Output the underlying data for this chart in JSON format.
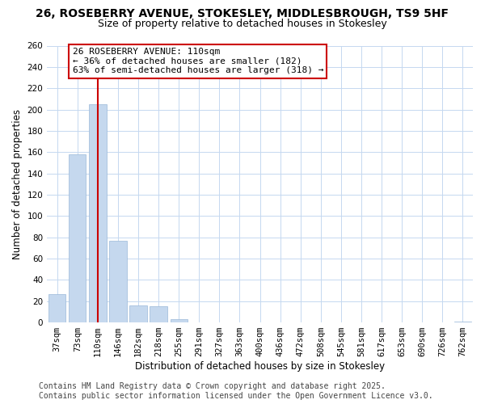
{
  "title": "26, ROSEBERRY AVENUE, STOKESLEY, MIDDLESBROUGH, TS9 5HF",
  "subtitle": "Size of property relative to detached houses in Stokesley",
  "xlabel": "Distribution of detached houses by size in Stokesley",
  "ylabel": "Number of detached properties",
  "bar_color": "#c5d8ee",
  "bar_edge_color": "#9ab8d8",
  "categories": [
    "37sqm",
    "73sqm",
    "110sqm",
    "146sqm",
    "182sqm",
    "218sqm",
    "255sqm",
    "291sqm",
    "327sqm",
    "363sqm",
    "400sqm",
    "436sqm",
    "472sqm",
    "508sqm",
    "545sqm",
    "581sqm",
    "617sqm",
    "653sqm",
    "690sqm",
    "726sqm",
    "762sqm"
  ],
  "values": [
    27,
    158,
    205,
    77,
    16,
    15,
    3,
    0,
    0,
    0,
    0,
    0,
    0,
    0,
    0,
    0,
    0,
    0,
    0,
    0,
    1
  ],
  "ylim": [
    0,
    260
  ],
  "yticks": [
    0,
    20,
    40,
    60,
    80,
    100,
    120,
    140,
    160,
    180,
    200,
    220,
    240,
    260
  ],
  "vline_x_index": 2,
  "vline_color": "#cc0000",
  "ann_line1": "26 ROSEBERRY AVENUE: 110sqm",
  "ann_line2": "← 36% of detached houses are smaller (182)",
  "ann_line3": "63% of semi-detached houses are larger (318) →",
  "footer_line1": "Contains HM Land Registry data © Crown copyright and database right 2025.",
  "footer_line2": "Contains public sector information licensed under the Open Government Licence v3.0.",
  "background_color": "#ffffff",
  "grid_color": "#c5d8f0",
  "title_fontsize": 10,
  "subtitle_fontsize": 9,
  "axis_label_fontsize": 8.5,
  "tick_fontsize": 7.5,
  "ann_fontsize": 8,
  "footer_fontsize": 7
}
